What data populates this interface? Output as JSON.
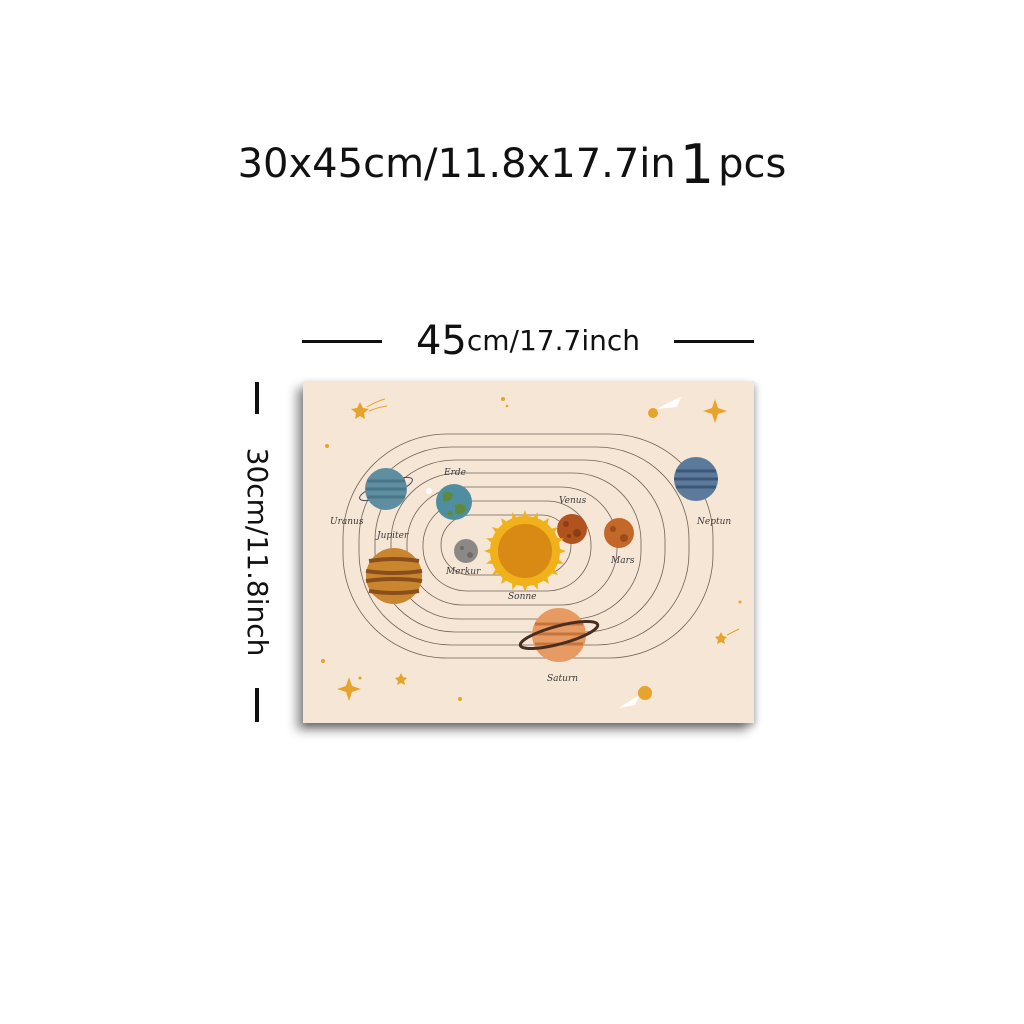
{
  "headline": {
    "size": "30x45cm/11.8x17.7in",
    "quantity": "1",
    "unit": "pcs"
  },
  "width_dimension": {
    "number": "45",
    "unit_text": "cm/17.7inch"
  },
  "height_dimension": {
    "label": "30cm/11.8inch"
  },
  "poster": {
    "background_color": "#f6e6d5",
    "planet_labels": {
      "uranus": "Uranus",
      "erde": "Erde",
      "venus": "Venus",
      "neptun": "Neptun",
      "jupiter": "Jupiter",
      "merkur": "Merkur",
      "mars": "Mars",
      "sonne": "Sonne",
      "saturn": "Saturn"
    }
  }
}
